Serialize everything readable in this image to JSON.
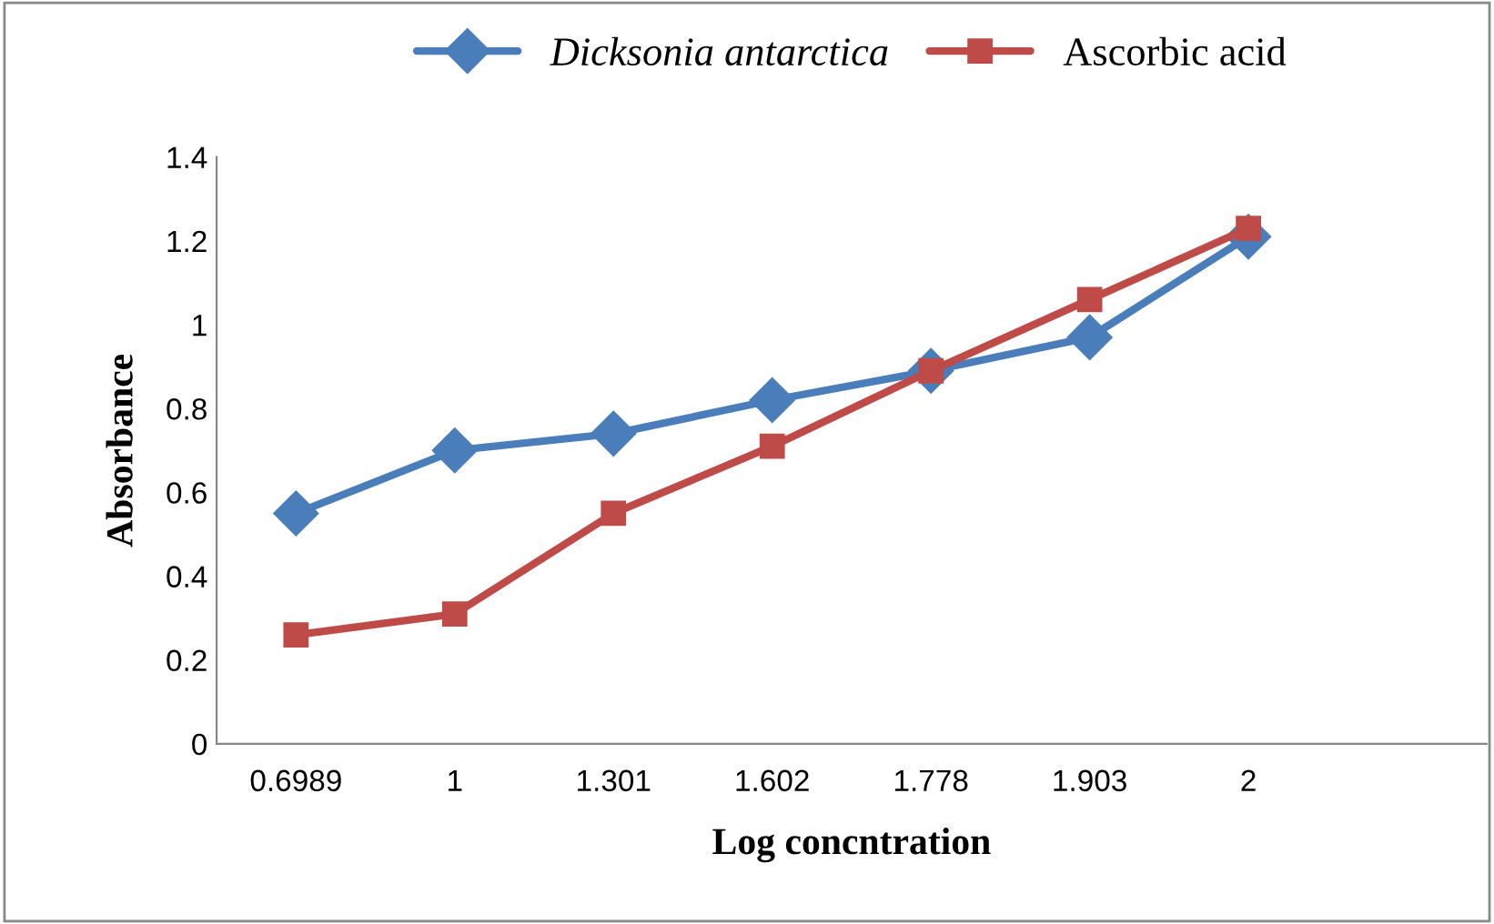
{
  "chart_data": {
    "type": "line",
    "xlabel": "Log concntration",
    "ylabel": "Absorbance",
    "categories": [
      "0.6989",
      "1",
      "1.301",
      "1.602",
      "1.778",
      "1.903",
      "2",
      null
    ],
    "series": [
      {
        "name": "Dicksonia antarctica",
        "color": "#4a7ebb",
        "marker": "diamond",
        "values": [
          0.55,
          0.7,
          0.74,
          0.82,
          0.89,
          0.97,
          1.21,
          null
        ]
      },
      {
        "name": "Ascorbic acid",
        "color": "#be4b48",
        "marker": "square",
        "values": [
          0.26,
          0.31,
          0.55,
          0.71,
          0.89,
          1.06,
          1.23,
          null
        ]
      }
    ],
    "ylim": [
      0,
      1.4
    ],
    "yticks": [
      0,
      0.2,
      0.4,
      0.6,
      0.8,
      1,
      1.2,
      1.4
    ],
    "grid": false,
    "legend": "top"
  }
}
